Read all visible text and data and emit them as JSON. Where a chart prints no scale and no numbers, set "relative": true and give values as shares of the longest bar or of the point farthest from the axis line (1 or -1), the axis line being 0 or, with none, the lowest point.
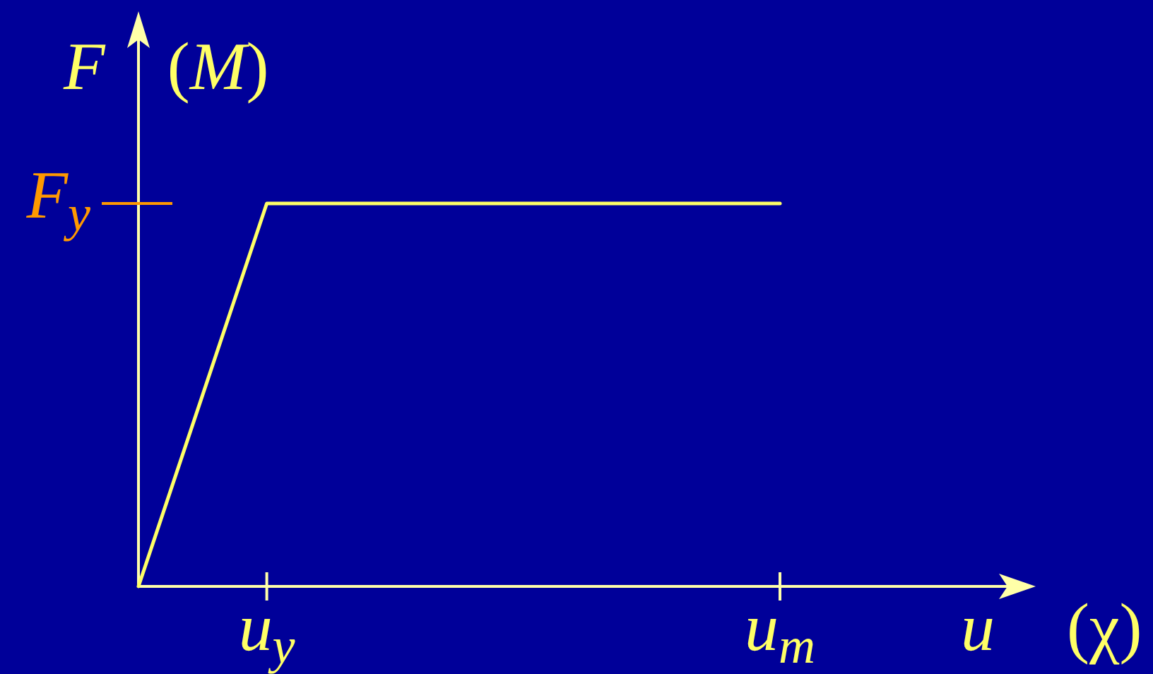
{
  "chart_data": {
    "type": "line",
    "relative": true,
    "categories": [
      null,
      "u$_{y}$",
      null,
      null,
      null,
      "u$_{m}$"
    ],
    "series": [
      {
        "color": "#ffff66",
        "values": [
          0,
          1,
          1,
          1,
          1,
          1
        ]
      }
    ],
    "annotations": [
      "F$_{y}$"
    ],
    "xlabel": "u (χ)",
    "ylabel": "F (M)"
  }
}
